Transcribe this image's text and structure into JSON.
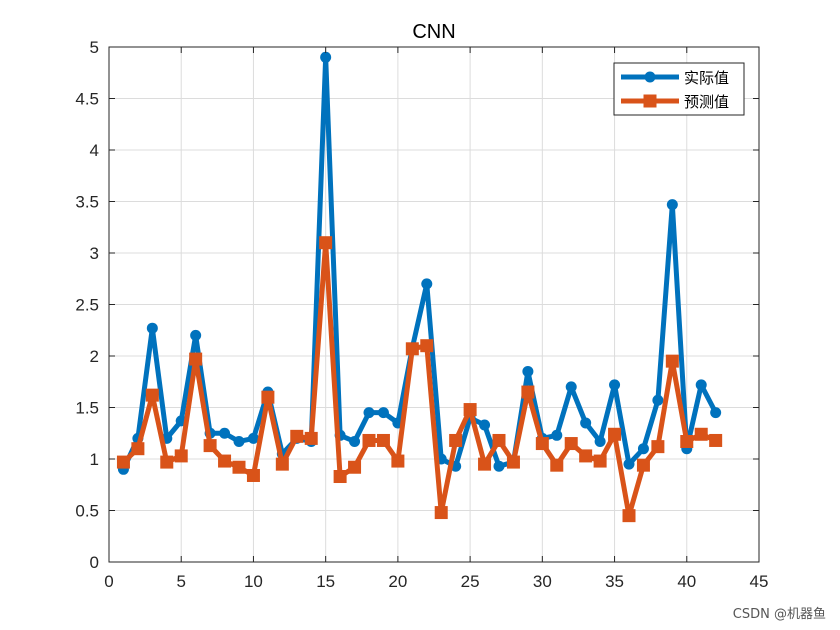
{
  "chart_data": {
    "type": "line",
    "title": "CNN",
    "xlabel": "",
    "ylabel": "",
    "xlim": [
      0,
      45
    ],
    "ylim": [
      0,
      5
    ],
    "xticks": [
      "0",
      "5",
      "10",
      "15",
      "20",
      "25",
      "30",
      "35",
      "40",
      "45"
    ],
    "yticks": [
      "0",
      "0.5",
      "1",
      "1.5",
      "2",
      "2.5",
      "3",
      "3.5",
      "4",
      "4.5",
      "5"
    ],
    "grid": true,
    "legend_position": "top-right",
    "x": [
      1,
      2,
      3,
      4,
      5,
      6,
      7,
      8,
      9,
      10,
      11,
      12,
      13,
      14,
      15,
      16,
      17,
      18,
      19,
      20,
      21,
      22,
      23,
      24,
      25,
      26,
      27,
      28,
      29,
      30,
      31,
      32,
      33,
      34,
      35,
      36,
      37,
      38,
      39,
      40,
      41,
      42
    ],
    "series": [
      {
        "name": "实际值",
        "color": "#0072BD",
        "marker": "circle",
        "values": [
          0.9,
          1.2,
          2.27,
          1.2,
          1.37,
          2.2,
          1.25,
          1.25,
          1.17,
          1.2,
          1.65,
          1.05,
          1.2,
          1.17,
          4.9,
          1.23,
          1.17,
          1.45,
          1.45,
          1.35,
          2.08,
          2.7,
          1.0,
          0.93,
          1.4,
          1.33,
          0.93,
          0.97,
          1.85,
          1.2,
          1.23,
          1.7,
          1.35,
          1.17,
          1.72,
          0.95,
          1.1,
          1.57,
          3.47,
          1.1,
          1.72,
          1.45
        ]
      },
      {
        "name": "预测值",
        "color": "#D95319",
        "marker": "square",
        "values": [
          0.97,
          1.1,
          1.62,
          0.97,
          1.03,
          1.97,
          1.13,
          0.98,
          0.92,
          0.84,
          1.6,
          0.95,
          1.22,
          1.2,
          3.1,
          0.83,
          0.92,
          1.18,
          1.18,
          0.98,
          2.07,
          2.1,
          0.48,
          1.18,
          1.48,
          0.95,
          1.18,
          0.97,
          1.65,
          1.15,
          0.94,
          1.15,
          1.03,
          0.98,
          1.24,
          0.45,
          0.94,
          1.12,
          1.95,
          1.17,
          1.24,
          1.18
        ]
      }
    ]
  },
  "watermark": "CSDN @机器鱼"
}
